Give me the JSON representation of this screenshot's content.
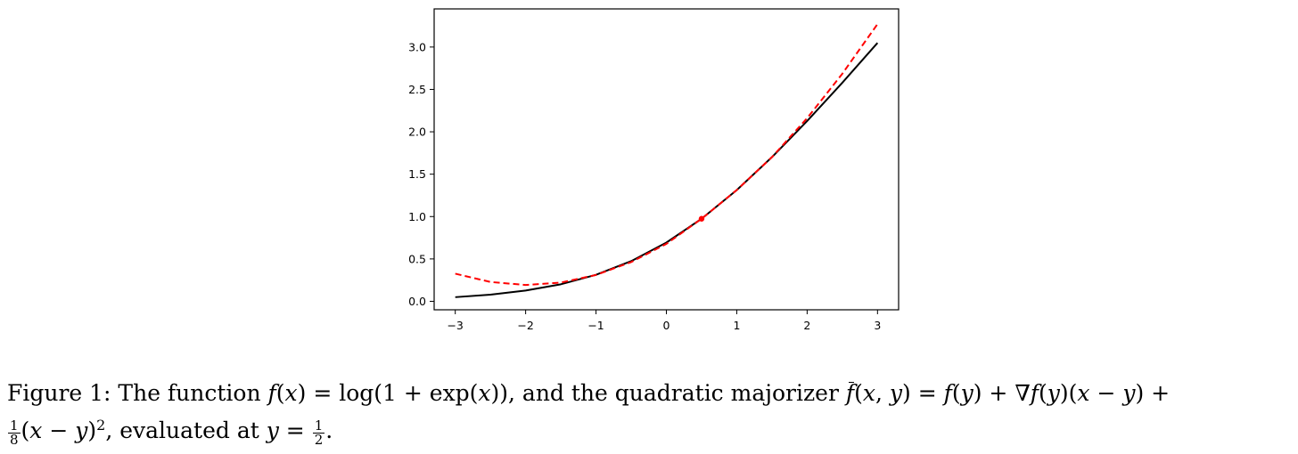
{
  "chart_data": {
    "type": "line",
    "xlim": [
      -3.3,
      3.3
    ],
    "ylim": [
      -0.1,
      3.45
    ],
    "xticks": [
      "−3",
      "−2",
      "−1",
      "0",
      "1",
      "2",
      "3"
    ],
    "yticks": [
      "0.0",
      "0.5",
      "1.0",
      "1.5",
      "2.0",
      "2.5",
      "3.0"
    ],
    "grid": false,
    "series": [
      {
        "color": "#000000",
        "style": "solid",
        "x": [
          -3,
          -2.5,
          -2,
          -1.5,
          -1,
          -0.5,
          0,
          0.5,
          1,
          1.5,
          2,
          2.5,
          3
        ],
        "y": [
          0.049,
          0.079,
          0.127,
          0.201,
          0.313,
          0.474,
          0.693,
          0.974,
          1.313,
          1.701,
          2.127,
          2.579,
          3.049
        ]
      },
      {
        "color": "#ff0000",
        "style": "dashed",
        "x": [
          -3,
          -2.5,
          -2,
          -1.5,
          -1,
          -0.5,
          0,
          0.5,
          1,
          1.5,
          2,
          2.5,
          3
        ],
        "y": [
          0.326,
          0.228,
          0.193,
          0.221,
          0.311,
          0.463,
          0.678,
          0.974,
          1.313,
          1.701,
          2.161,
          2.685,
          3.271
        ]
      }
    ],
    "point": {
      "x": 0.5,
      "y": 0.974,
      "color": "#ff0000"
    }
  },
  "caption": {
    "line1": "Figure 1:  The function 𝑓(𝑥) = log(1 + exp(𝑥)), and the quadratic majorizer ",
    "fbar": "𝑓",
    "line1_tail": "(𝑥, 𝑦) = 𝑓(𝑦) + ∇𝑓(𝑦)(𝑥 − 𝑦) +",
    "frac1_num": "1",
    "frac1_den": "8",
    "line2_a": "(𝑥 − 𝑦)",
    "line2_sup": "2",
    "line2_b": ", evaluated at 𝑦 = ",
    "frac2_num": "1",
    "frac2_den": "2",
    "line2_c": "."
  }
}
